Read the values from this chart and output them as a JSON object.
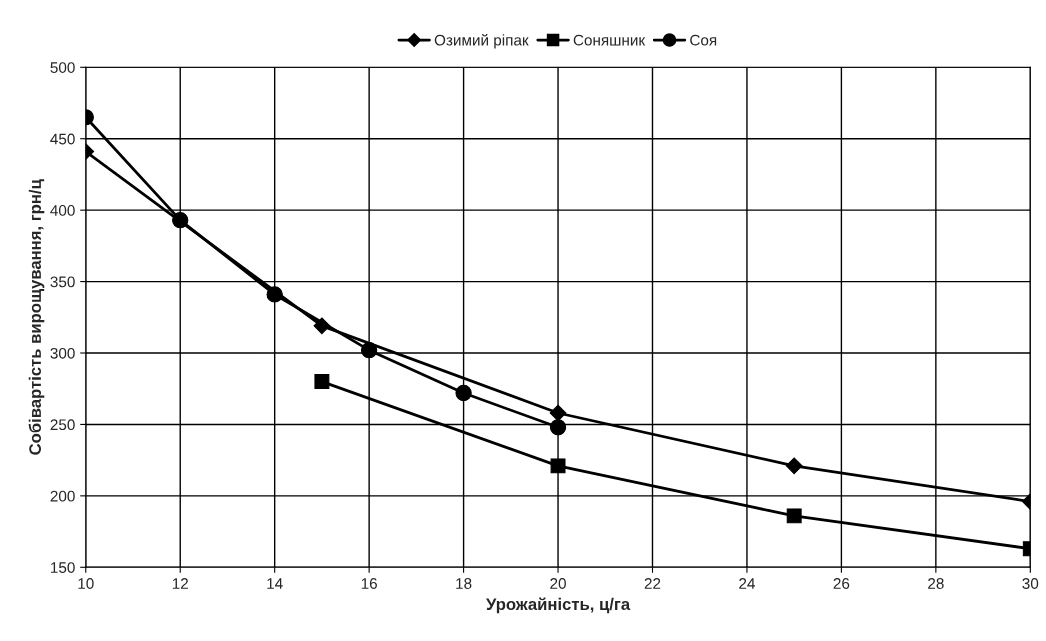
{
  "chart_data": {
    "type": "line",
    "xlabel": "Урожайність, ц/га",
    "ylabel": "Собівартість вирощування, грн/ц",
    "xlim": [
      10,
      30
    ],
    "xticks": [
      10,
      12,
      14,
      16,
      18,
      20,
      22,
      24,
      26,
      28,
      30
    ],
    "ylim": [
      150,
      500
    ],
    "yticks": [
      150,
      200,
      250,
      300,
      350,
      400,
      450,
      500
    ],
    "grid": true,
    "legend": "top",
    "series": [
      {
        "name": "Озимий ріпак",
        "color": "#000000",
        "marker": "diamond",
        "x": [
          10,
          12,
          14,
          15,
          16,
          20,
          25,
          30
        ],
        "values": [
          441,
          null,
          null,
          319,
          null,
          258,
          221,
          196
        ]
      },
      {
        "name": "Соняшник",
        "color": "#000000",
        "marker": "square",
        "x": [
          15,
          20,
          25,
          30
        ],
        "values": [
          280,
          221,
          186,
          163
        ]
      },
      {
        "name": "Соя",
        "color": "#000000",
        "marker": "circle",
        "x": [
          10,
          12,
          14,
          16,
          18,
          20
        ],
        "values": [
          465,
          393,
          341,
          302,
          272,
          248
        ]
      }
    ]
  }
}
